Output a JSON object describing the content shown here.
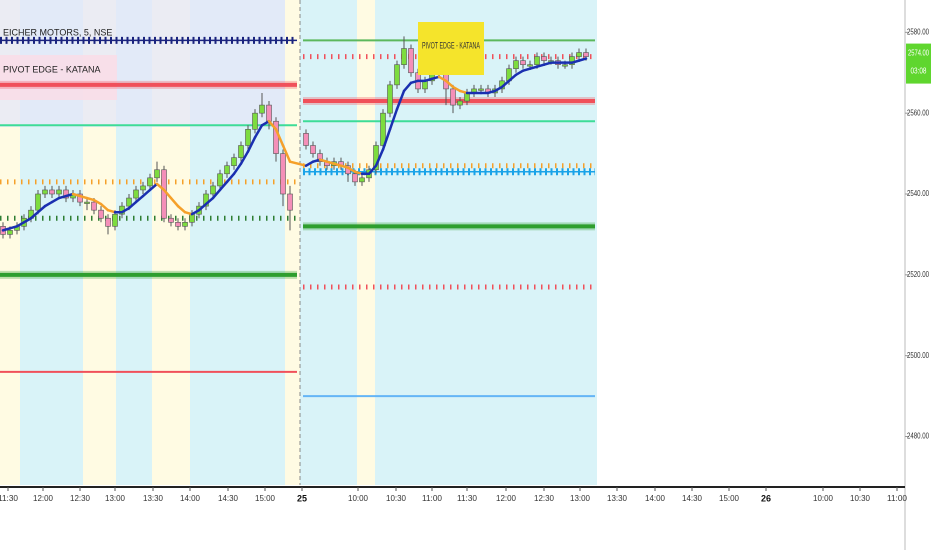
{
  "chart_data": {
    "type": "candlestick",
    "title": "EICHER MOTORS, 5, NSE",
    "indicator": "PIVOT EDGE - KATANA",
    "annotation": "PIVOT EDGE - KATANA",
    "ylim": [
      2468,
      2588
    ],
    "yticks": [
      {
        "value": 2580,
        "label": "2580.00"
      },
      {
        "value": 2560,
        "label": "2560.00"
      },
      {
        "value": 2540,
        "label": "2540.00"
      },
      {
        "value": 2520,
        "label": "2520.00"
      },
      {
        "value": 2500,
        "label": "2500.00"
      },
      {
        "value": 2480,
        "label": "2480.00"
      }
    ],
    "xlabels": [
      "11:30",
      "12:00",
      "12:30",
      "13:00",
      "13:30",
      "14:00",
      "14:30",
      "15:00",
      "25",
      "10:00",
      "10:30",
      "11:00",
      "11:30",
      "12:00",
      "12:30",
      "13:00",
      "13:30",
      "14:00",
      "14:30",
      "15:00",
      "26",
      "10:00",
      "10:30",
      "11:00"
    ],
    "last_price": {
      "value": 2574,
      "label": "2574.00"
    },
    "countdown": "03:08",
    "up_color": "#7ddc3f",
    "down_color": "#f48fb8",
    "ma_up_color": "#1a2fb0",
    "ma_down_color": "#f5a02a",
    "ohlc": [
      [
        2532,
        2533,
        2529,
        2530
      ],
      [
        2530,
        2532,
        2529,
        2531
      ],
      [
        2531,
        2533,
        2530,
        2532
      ],
      [
        2532,
        2535,
        2531,
        2534
      ],
      [
        2534,
        2537,
        2533,
        2536
      ],
      [
        2536,
        2541,
        2535,
        2540
      ],
      [
        2540,
        2542,
        2539,
        2541
      ],
      [
        2541,
        2542,
        2539,
        2540
      ],
      [
        2540,
        2542,
        2539,
        2541
      ],
      [
        2541,
        2542,
        2538,
        2539
      ],
      [
        2539,
        2541,
        2538,
        2540
      ],
      [
        2540,
        2541,
        2537,
        2538
      ],
      [
        2538,
        2539,
        2536,
        2538
      ],
      [
        2538,
        2539,
        2535,
        2536
      ],
      [
        2536,
        2537,
        2533,
        2534
      ],
      [
        2534,
        2535,
        2530,
        2532
      ],
      [
        2532,
        2536,
        2531,
        2535
      ],
      [
        2535,
        2538,
        2534,
        2537
      ],
      [
        2537,
        2540,
        2536,
        2539
      ],
      [
        2539,
        2542,
        2538,
        2541
      ],
      [
        2541,
        2543,
        2540,
        2542
      ],
      [
        2542,
        2545,
        2541,
        2544
      ],
      [
        2544,
        2548,
        2543,
        2546
      ],
      [
        2546,
        2547,
        2533,
        2534
      ],
      [
        2534,
        2535,
        2532,
        2533
      ],
      [
        2533,
        2534,
        2531,
        2532
      ],
      [
        2532,
        2534,
        2531,
        2533
      ],
      [
        2533,
        2536,
        2532,
        2535
      ],
      [
        2535,
        2538,
        2534,
        2537
      ],
      [
        2537,
        2541,
        2536,
        2540
      ],
      [
        2540,
        2543,
        2539,
        2542
      ],
      [
        2542,
        2546,
        2541,
        2545
      ],
      [
        2545,
        2548,
        2544,
        2547
      ],
      [
        2547,
        2550,
        2546,
        2549
      ],
      [
        2549,
        2553,
        2548,
        2552
      ],
      [
        2552,
        2557,
        2551,
        2556
      ],
      [
        2556,
        2561,
        2555,
        2560
      ],
      [
        2560,
        2565,
        2559,
        2562
      ],
      [
        2562,
        2563,
        2556,
        2558
      ],
      [
        2558,
        2559,
        2548,
        2550
      ],
      [
        2550,
        2551,
        2537,
        2540
      ],
      [
        2540,
        2542,
        2531,
        2536
      ],
      [
        2555,
        2556,
        2551,
        2552
      ],
      [
        2552,
        2553,
        2549,
        2550
      ],
      [
        2550,
        2551,
        2547,
        2548
      ],
      [
        2548,
        2549,
        2546,
        2547
      ],
      [
        2547,
        2549,
        2546,
        2548
      ],
      [
        2548,
        2549,
        2546,
        2547
      ],
      [
        2547,
        2548,
        2543,
        2545
      ],
      [
        2545,
        2546,
        2542,
        2543
      ],
      [
        2543,
        2545,
        2542,
        2544
      ],
      [
        2544,
        2547,
        2543,
        2546
      ],
      [
        2546,
        2553,
        2545,
        2552
      ],
      [
        2552,
        2561,
        2551,
        2560
      ],
      [
        2560,
        2568,
        2559,
        2567
      ],
      [
        2567,
        2573,
        2566,
        2572
      ],
      [
        2572,
        2579,
        2571,
        2576
      ],
      [
        2576,
        2577,
        2569,
        2570
      ],
      [
        2570,
        2571,
        2565,
        2566
      ],
      [
        2566,
        2569,
        2565,
        2568
      ],
      [
        2568,
        2571,
        2567,
        2570
      ],
      [
        2570,
        2572,
        2569,
        2571
      ],
      [
        2571,
        2572,
        2562,
        2566
      ],
      [
        2566,
        2567,
        2560,
        2562
      ],
      [
        2562,
        2564,
        2561,
        2563
      ],
      [
        2563,
        2566,
        2562,
        2565
      ],
      [
        2565,
        2567,
        2564,
        2566
      ],
      [
        2566,
        2567,
        2565,
        2566
      ],
      [
        2566,
        2567,
        2564,
        2565
      ],
      [
        2565,
        2567,
        2564,
        2566
      ],
      [
        2566,
        2569,
        2565,
        2568
      ],
      [
        2568,
        2572,
        2567,
        2571
      ],
      [
        2571,
        2574,
        2570,
        2573
      ],
      [
        2573,
        2574,
        2571,
        2572
      ],
      [
        2572,
        2573,
        2571,
        2572
      ],
      [
        2572,
        2575,
        2571,
        2574
      ],
      [
        2574,
        2575,
        2572,
        2573
      ],
      [
        2573,
        2574,
        2572,
        2573
      ],
      [
        2573,
        2574,
        2571,
        2572
      ],
      [
        2572,
        2573,
        2571,
        2572
      ],
      [
        2572,
        2575,
        2571,
        2574
      ],
      [
        2574,
        2576,
        2573,
        2575
      ],
      [
        2575,
        2576,
        2573,
        2574
      ]
    ],
    "ma": [
      2531,
      2531.5,
      2532,
      2533,
      2534,
      2535.5,
      2537,
      2538,
      2539,
      2539.5,
      2540,
      2539.5,
      2539,
      2538.5,
      2537.5,
      2536,
      2535.5,
      2535.5,
      2536.5,
      2538,
      2539.5,
      2541,
      2542.5,
      2541,
      2539,
      2537,
      2535.5,
      2535,
      2536,
      2537.5,
      2539,
      2541,
      2543,
      2545,
      2547.5,
      2550.5,
      2554,
      2557,
      2558,
      2556,
      2552,
      2548,
      2547,
      2548,
      2548.5,
      2548,
      2547.5,
      2547,
      2546.5,
      2545.5,
      2545,
      2545,
      2547,
      2551,
      2556,
      2561,
      2565.5,
      2567.5,
      2568,
      2568,
      2568.5,
      2569,
      2568,
      2566.5,
      2565.5,
      2565,
      2565,
      2565,
      2565,
      2565.5,
      2566.5,
      2568,
      2569.5,
      2570.5,
      2571,
      2571.5,
      2572,
      2572.5,
      2572.5,
      2572.5,
      2572.5,
      2573,
      2573.5
    ],
    "sessions": [
      {
        "levels": [
          {
            "value": 2578,
            "color": "#1a237e",
            "style": "diamond"
          },
          {
            "value": 2567,
            "color": "#f0505a",
            "style": "thick"
          },
          {
            "value": 2557,
            "color": "#3ddc97",
            "style": "solid"
          },
          {
            "value": 2543,
            "color": "#f5a02a",
            "style": "dotted"
          },
          {
            "value": 2534,
            "color": "#2e7d32",
            "style": "dotted"
          },
          {
            "value": 2520,
            "color": "#2e9e2e",
            "style": "thick"
          },
          {
            "value": 2496,
            "color": "#f0505a",
            "style": "solid"
          }
        ]
      },
      {
        "levels": [
          {
            "value": 2578,
            "color": "#5cb85c",
            "style": "solid"
          },
          {
            "value": 2574,
            "color": "#f0505a",
            "style": "dotted"
          },
          {
            "value": 2563,
            "color": "#f0505a",
            "style": "thick"
          },
          {
            "value": 2558,
            "color": "#3ddc97",
            "style": "solid"
          },
          {
            "value": 2547,
            "color": "#f5a02a",
            "style": "dotted"
          },
          {
            "value": 2545.5,
            "color": "#1aa3e8",
            "style": "diamond"
          },
          {
            "value": 2532,
            "color": "#2e9e2e",
            "style": "thick"
          },
          {
            "value": 2517,
            "color": "#f0505a",
            "style": "dotted"
          },
          {
            "value": 2490,
            "color": "#64b5f6",
            "style": "solid"
          }
        ]
      }
    ]
  }
}
